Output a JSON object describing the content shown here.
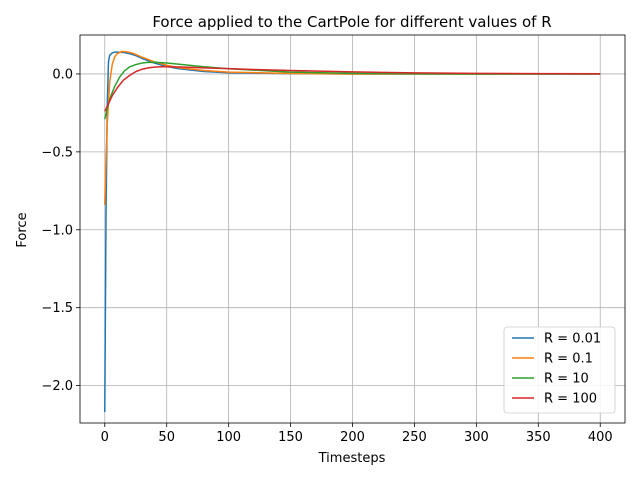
{
  "chart_data": {
    "type": "line",
    "title": "Force applied to the CartPole for different values of R",
    "xlabel": "Timesteps",
    "ylabel": "Force",
    "xlim": [
      -20,
      420
    ],
    "ylim": [
      -2.24,
      0.25
    ],
    "xticks": [
      0,
      50,
      100,
      150,
      200,
      250,
      300,
      350,
      400
    ],
    "xtick_labels": [
      "0",
      "50",
      "100",
      "150",
      "200",
      "250",
      "300",
      "350",
      "400"
    ],
    "yticks": [
      0.0,
      -0.5,
      -1.0,
      -1.5,
      -2.0
    ],
    "ytick_labels": [
      "0.0",
      "−0.5",
      "−1.0",
      "−1.5",
      "−2.0"
    ],
    "grid": true,
    "legend_position": "lower-right",
    "series": [
      {
        "name": "R = 0.01",
        "color": "#1f77b4",
        "x": [
          0,
          1,
          2,
          3,
          4,
          6,
          8,
          10,
          15,
          20,
          25,
          30,
          40,
          50,
          60,
          80,
          100,
          150,
          200,
          250,
          300,
          350,
          400
        ],
        "y": [
          -2.17,
          -0.9,
          -0.2,
          0.08,
          0.12,
          0.135,
          0.14,
          0.14,
          0.138,
          0.13,
          0.118,
          0.1,
          0.07,
          0.048,
          0.033,
          0.016,
          0.008,
          0.002,
          0.0,
          0.0,
          0.0,
          0.0,
          0.0
        ]
      },
      {
        "name": "R = 0.1",
        "color": "#ff7f0e",
        "x": [
          0,
          1,
          2,
          4,
          6,
          8,
          10,
          14,
          18,
          22,
          26,
          30,
          40,
          50,
          60,
          80,
          100,
          150,
          200,
          250,
          300,
          350,
          400
        ],
        "y": [
          -0.84,
          -0.55,
          -0.32,
          -0.05,
          0.06,
          0.11,
          0.13,
          0.145,
          0.142,
          0.135,
          0.122,
          0.108,
          0.078,
          0.056,
          0.04,
          0.022,
          0.012,
          0.003,
          0.0,
          0.0,
          0.0,
          0.0,
          0.0
        ]
      },
      {
        "name": "R = 10",
        "color": "#2ca02c",
        "x": [
          0,
          2,
          5,
          8,
          12,
          16,
          20,
          25,
          30,
          35,
          40,
          45,
          50,
          60,
          70,
          80,
          100,
          150,
          200,
          250,
          300,
          350,
          400
        ],
        "y": [
          -0.29,
          -0.22,
          -0.14,
          -0.08,
          -0.02,
          0.02,
          0.045,
          0.06,
          0.07,
          0.074,
          0.075,
          0.073,
          0.07,
          0.062,
          0.054,
          0.046,
          0.033,
          0.012,
          0.004,
          0.001,
          0.0,
          0.0,
          0.0
        ]
      },
      {
        "name": "R = 100",
        "color": "#d62728",
        "x": [
          0,
          3,
          6,
          10,
          15,
          20,
          25,
          30,
          35,
          40,
          45,
          50,
          60,
          70,
          80,
          100,
          120,
          150,
          200,
          250,
          300,
          350,
          400
        ],
        "y": [
          -0.24,
          -0.19,
          -0.14,
          -0.09,
          -0.04,
          -0.01,
          0.015,
          0.03,
          0.039,
          0.044,
          0.046,
          0.046,
          0.045,
          0.042,
          0.039,
          0.034,
          0.029,
          0.022,
          0.013,
          0.007,
          0.004,
          0.002,
          0.001
        ]
      }
    ]
  }
}
